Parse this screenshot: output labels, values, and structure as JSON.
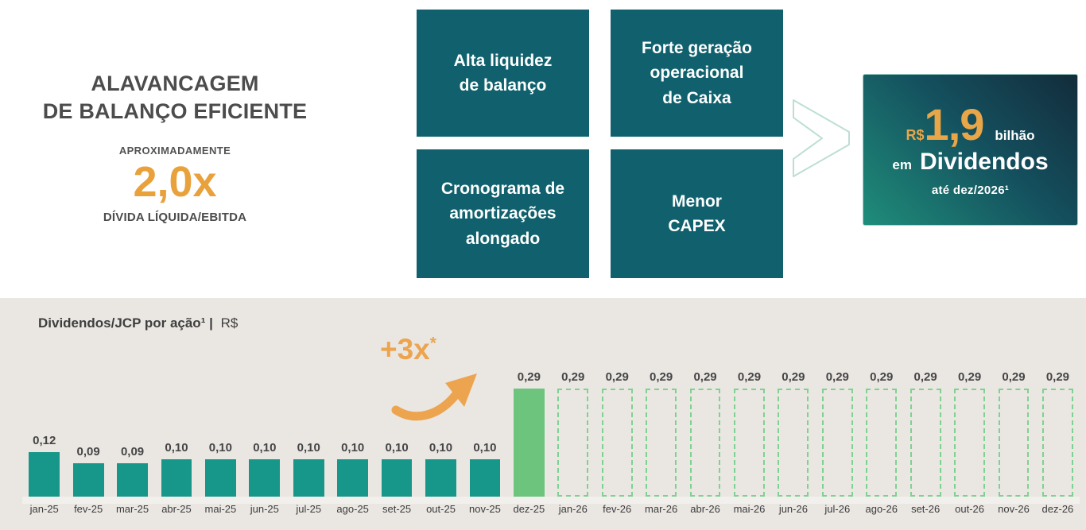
{
  "colors": {
    "accent_orange": "#E9A13B",
    "driver_box_teal": "#10616D",
    "bar_teal": "#17978A",
    "bar_green": "#6CC47D",
    "bar_dashed_green": "#7FD191",
    "panel_background": "#EAE7E3",
    "highlight_gradient_start": "#132C3B",
    "highlight_gradient_end": "#1F8D7A",
    "heading_gray": "#4C4C4C"
  },
  "leverage": {
    "title_line1": "ALAVANCAGEM",
    "title_line2": "DE BALANÇO EFICIENTE",
    "approx": "APROXIMADAMENTE",
    "multiple": "2,0x",
    "metric": "DÍVIDA LÍQUIDA/EBITDA"
  },
  "driver_boxes": [
    {
      "label": "Alta liquidez\nde balanço"
    },
    {
      "label": "Forte geração\noperacional\nde Caixa"
    },
    {
      "label": "Cronograma de\namortizações\nalongado"
    },
    {
      "label": "Menor\nCAPEX"
    }
  ],
  "highlight": {
    "currency": "R$",
    "amount": "1,9",
    "unit": "bilhão",
    "preposition": "em",
    "label": "Dividendos",
    "deadline": "até dez/2026¹"
  },
  "chart_header": {
    "title_bold": "Dividendos/JCP por ação¹ |",
    "title_unit": "R$"
  },
  "annotation": {
    "text": "+3x",
    "sup": "*"
  },
  "chart_data": {
    "type": "bar",
    "title": "Dividendos/JCP por ação¹ | R$",
    "xlabel": "",
    "ylabel": "Dividendos/JCP por ação (R$)",
    "ylim": [
      0,
      0.32
    ],
    "grid": false,
    "legend_position": "none",
    "annotation": "+3x* arrow pointing to dez-25 bar",
    "categories": [
      "jan-25",
      "fev-25",
      "mar-25",
      "abr-25",
      "mai-25",
      "jun-25",
      "jul-25",
      "ago-25",
      "set-25",
      "out-25",
      "nov-25",
      "dez-25",
      "jan-26",
      "fev-26",
      "mar-26",
      "abr-26",
      "mai-26",
      "jun-26",
      "jul-26",
      "ago-26",
      "set-26",
      "out-26",
      "nov-26",
      "dez-26"
    ],
    "values": [
      0.12,
      0.09,
      0.09,
      0.1,
      0.1,
      0.1,
      0.1,
      0.1,
      0.1,
      0.1,
      0.1,
      0.29,
      0.29,
      0.29,
      0.29,
      0.29,
      0.29,
      0.29,
      0.29,
      0.29,
      0.29,
      0.29,
      0.29,
      0.29
    ],
    "value_labels": [
      "0,12",
      "0,09",
      "0,09",
      "0,10",
      "0,10",
      "0,10",
      "0,10",
      "0,10",
      "0,10",
      "0,10",
      "0,10",
      "0,29",
      "0,29",
      "0,29",
      "0,29",
      "0,29",
      "0,29",
      "0,29",
      "0,29",
      "0,29",
      "0,29",
      "0,29",
      "0,29",
      "0,29"
    ],
    "bar_styles": [
      "solid-teal",
      "solid-teal",
      "solid-teal",
      "solid-teal",
      "solid-teal",
      "solid-teal",
      "solid-teal",
      "solid-teal",
      "solid-teal",
      "solid-teal",
      "solid-teal",
      "solid-green",
      "dashed",
      "dashed",
      "dashed",
      "dashed",
      "dashed",
      "dashed",
      "dashed",
      "dashed",
      "dashed",
      "dashed",
      "dashed",
      "dashed"
    ]
  }
}
